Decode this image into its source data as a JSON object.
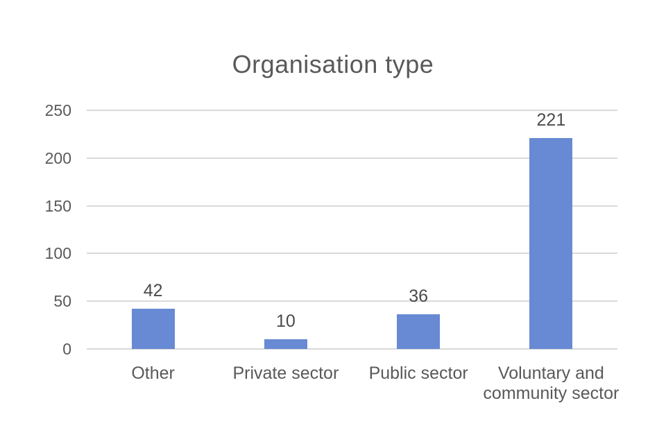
{
  "page": {
    "background": "#FFFFFF"
  },
  "chart_data": {
    "type": "bar",
    "title": "Organisation type",
    "categories": [
      "Other",
      "Private sector",
      "Public sector",
      "Voluntary and community sector"
    ],
    "values": [
      42,
      10,
      36,
      221
    ],
    "data_labels": [
      "42",
      "10",
      "36",
      "221"
    ],
    "xlabel": "",
    "ylabel": "",
    "ylim": [
      0,
      250
    ],
    "yticks": [
      0,
      50,
      100,
      150,
      200,
      250
    ],
    "grid": true,
    "legend": false,
    "layout_hints": {
      "gridlines": "horizontal-only",
      "data_label_position": "outside-end",
      "bar_gap": "wide",
      "last_category_wraps": "two lines"
    },
    "colors": {
      "bar_fill": "#6889D3",
      "gridline": "#D9D9D9",
      "title_text": "#595959",
      "axis_text": "#595959",
      "value_text": "#4A4A4A",
      "background": "#FFFFFF"
    }
  }
}
